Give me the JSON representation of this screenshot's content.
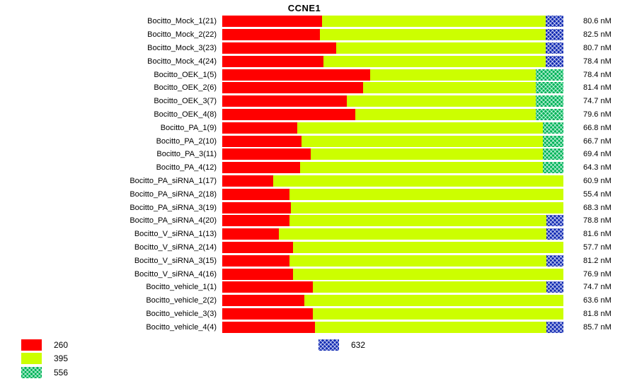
{
  "chart_data": {
    "type": "bar",
    "orientation": "horizontal",
    "stacked": true,
    "title": "CCNE1",
    "unit": "nM",
    "series": [
      "260",
      "395",
      "556",
      "632"
    ],
    "colors": {
      "260": "#ff0000",
      "395": "#ccff00",
      "556": "#00cc66",
      "632": "#1733cc"
    },
    "patterns": {
      "260": "solid",
      "395": "solid",
      "556": "check",
      "632": "check"
    },
    "rows": [
      {
        "label": "Bocitto_Mock_1(21)",
        "value": "80.6 nM",
        "segments": [
          {
            "series": "260",
            "frac": 0.292
          },
          {
            "series": "395",
            "frac": 0.656
          },
          {
            "series": "632",
            "frac": 0.052
          }
        ]
      },
      {
        "label": "Bocitto_Mock_2(22)",
        "value": "82.5 nM",
        "segments": [
          {
            "series": "260",
            "frac": 0.287
          },
          {
            "series": "395",
            "frac": 0.661
          },
          {
            "series": "632",
            "frac": 0.052
          }
        ]
      },
      {
        "label": "Bocitto_Mock_3(23)",
        "value": "80.7 nM",
        "segments": [
          {
            "series": "260",
            "frac": 0.333
          },
          {
            "series": "395",
            "frac": 0.615
          },
          {
            "series": "632",
            "frac": 0.052
          }
        ]
      },
      {
        "label": "Bocitto_Mock_4(24)",
        "value": "78.4 nM",
        "segments": [
          {
            "series": "260",
            "frac": 0.296
          },
          {
            "series": "395",
            "frac": 0.652
          },
          {
            "series": "632",
            "frac": 0.052
          }
        ]
      },
      {
        "label": "Bocitto_OEK_1(5)",
        "value": "78.4 nM",
        "segments": [
          {
            "series": "260",
            "frac": 0.433
          },
          {
            "series": "395",
            "frac": 0.487
          },
          {
            "series": "556",
            "frac": 0.08
          }
        ]
      },
      {
        "label": "Bocitto_OEK_2(6)",
        "value": "81.4 nM",
        "segments": [
          {
            "series": "260",
            "frac": 0.412
          },
          {
            "series": "395",
            "frac": 0.508
          },
          {
            "series": "556",
            "frac": 0.08
          }
        ]
      },
      {
        "label": "Bocitto_OEK_3(7)",
        "value": "74.7 nM",
        "segments": [
          {
            "series": "260",
            "frac": 0.365
          },
          {
            "series": "395",
            "frac": 0.555
          },
          {
            "series": "556",
            "frac": 0.08
          }
        ]
      },
      {
        "label": "Bocitto_OEK_4(8)",
        "value": "79.6 nM",
        "segments": [
          {
            "series": "260",
            "frac": 0.39
          },
          {
            "series": "395",
            "frac": 0.53
          },
          {
            "series": "556",
            "frac": 0.08
          }
        ]
      },
      {
        "label": "Bocitto_PA_1(9)",
        "value": "66.8 nM",
        "segments": [
          {
            "series": "260",
            "frac": 0.219
          },
          {
            "series": "395",
            "frac": 0.721
          },
          {
            "series": "556",
            "frac": 0.06
          }
        ]
      },
      {
        "label": "Bocitto_PA_2(10)",
        "value": "66.7 nM",
        "segments": [
          {
            "series": "260",
            "frac": 0.233
          },
          {
            "series": "395",
            "frac": 0.707
          },
          {
            "series": "556",
            "frac": 0.06
          }
        ]
      },
      {
        "label": "Bocitto_PA_3(11)",
        "value": "69.4 nM",
        "segments": [
          {
            "series": "260",
            "frac": 0.26
          },
          {
            "series": "395",
            "frac": 0.68
          },
          {
            "series": "556",
            "frac": 0.06
          }
        ]
      },
      {
        "label": "Bocitto_PA_4(12)",
        "value": "64.3 nM",
        "segments": [
          {
            "series": "260",
            "frac": 0.229
          },
          {
            "series": "395",
            "frac": 0.711
          },
          {
            "series": "556",
            "frac": 0.06
          }
        ]
      },
      {
        "label": "Bocitto_PA_siRNA_1(17)",
        "value": "60.9 nM",
        "segments": [
          {
            "series": "260",
            "frac": 0.15
          },
          {
            "series": "395",
            "frac": 0.85
          }
        ]
      },
      {
        "label": "Bocitto_PA_siRNA_2(18)",
        "value": "55.4 nM",
        "segments": [
          {
            "series": "260",
            "frac": 0.198
          },
          {
            "series": "395",
            "frac": 0.802
          }
        ]
      },
      {
        "label": "Bocitto_PA_siRNA_3(19)",
        "value": "68.3 nM",
        "segments": [
          {
            "series": "260",
            "frac": 0.202
          },
          {
            "series": "395",
            "frac": 0.798
          }
        ]
      },
      {
        "label": "Bocitto_PA_siRNA_4(20)",
        "value": "78.8 nM",
        "segments": [
          {
            "series": "260",
            "frac": 0.198
          },
          {
            "series": "395",
            "frac": 0.752
          },
          {
            "series": "632",
            "frac": 0.05
          }
        ]
      },
      {
        "label": "Bocitto_V_siRNA_1(13)",
        "value": "81.6 nM",
        "segments": [
          {
            "series": "260",
            "frac": 0.167
          },
          {
            "series": "395",
            "frac": 0.783
          },
          {
            "series": "632",
            "frac": 0.05
          }
        ]
      },
      {
        "label": "Bocitto_V_siRNA_2(14)",
        "value": "57.7 nM",
        "segments": [
          {
            "series": "260",
            "frac": 0.208
          },
          {
            "series": "395",
            "frac": 0.792
          }
        ]
      },
      {
        "label": "Bocitto_V_siRNA_3(15)",
        "value": "81.2 nM",
        "segments": [
          {
            "series": "260",
            "frac": 0.198
          },
          {
            "series": "395",
            "frac": 0.752
          },
          {
            "series": "632",
            "frac": 0.05
          }
        ]
      },
      {
        "label": "Bocitto_V_siRNA_4(16)",
        "value": "76.9 nM",
        "segments": [
          {
            "series": "260",
            "frac": 0.208
          },
          {
            "series": "395",
            "frac": 0.792
          }
        ]
      },
      {
        "label": "Bocitto_vehicle_1(1)",
        "value": "74.7 nM",
        "segments": [
          {
            "series": "260",
            "frac": 0.265
          },
          {
            "series": "395",
            "frac": 0.685
          },
          {
            "series": "632",
            "frac": 0.05
          }
        ]
      },
      {
        "label": "Bocitto_vehicle_2(2)",
        "value": "63.6 nM",
        "segments": [
          {
            "series": "260",
            "frac": 0.24
          },
          {
            "series": "395",
            "frac": 0.76
          }
        ]
      },
      {
        "label": "Bocitto_vehicle_3(3)",
        "value": "81.8 nM",
        "segments": [
          {
            "series": "260",
            "frac": 0.265
          },
          {
            "series": "395",
            "frac": 0.735
          }
        ]
      },
      {
        "label": "Bocitto_vehicle_4(4)",
        "value": "85.7 nM",
        "segments": [
          {
            "series": "260",
            "frac": 0.271
          },
          {
            "series": "395",
            "frac": 0.679
          },
          {
            "series": "632",
            "frac": 0.05
          }
        ]
      }
    ],
    "legend": {
      "position": "bottom-left",
      "primary": [
        {
          "series": "260",
          "label": "260"
        },
        {
          "series": "395",
          "label": "395"
        },
        {
          "series": "556",
          "label": "556"
        }
      ],
      "secondary": [
        {
          "series": "632",
          "label": "632"
        }
      ]
    }
  }
}
